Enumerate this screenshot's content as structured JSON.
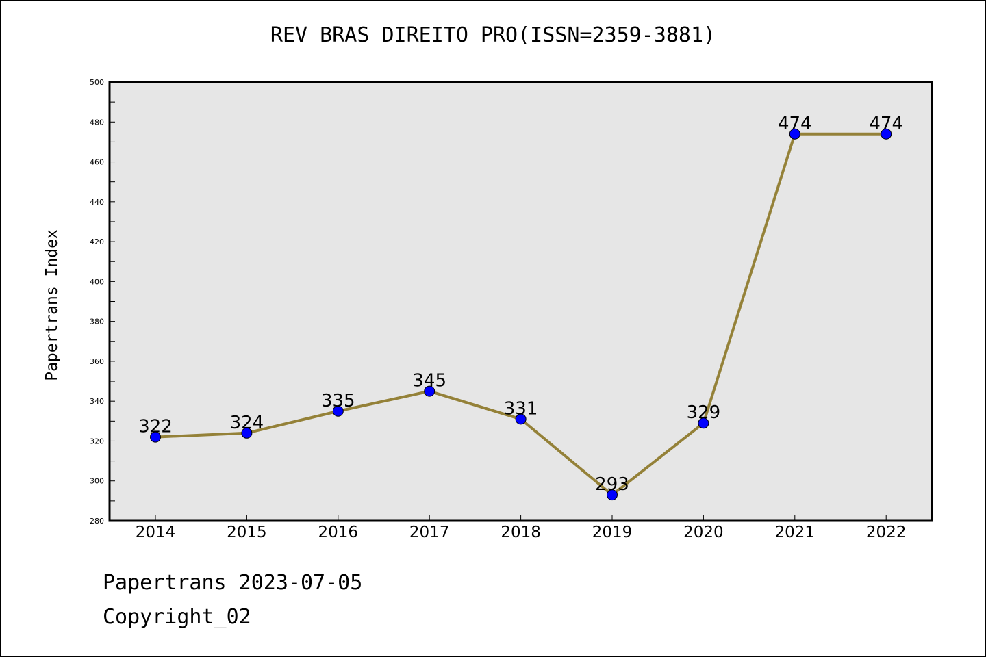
{
  "chart_data": {
    "type": "line",
    "title": "REV BRAS DIREITO PRO(ISSN=2359-3881)",
    "xlabel": "",
    "ylabel": "Papertrans Index",
    "x": [
      "2014",
      "2015",
      "2016",
      "2017",
      "2018",
      "2019",
      "2020",
      "2021",
      "2022"
    ],
    "series": [
      {
        "values": [
          322,
          324,
          335,
          345,
          331,
          293,
          329,
          474,
          474
        ]
      }
    ],
    "ylim": [
      280,
      500
    ],
    "yticks": [
      280,
      300,
      320,
      340,
      360,
      380,
      400,
      420,
      440,
      460,
      480,
      500
    ],
    "grid": false,
    "legend": "none",
    "colors": {
      "line": "#948138",
      "marker": "#0000ff",
      "plot_background": "#e6e6e6",
      "axes": "#000000"
    }
  },
  "footer": {
    "line1": "Papertrans 2023-07-05",
    "line2": "Copyright_02"
  }
}
